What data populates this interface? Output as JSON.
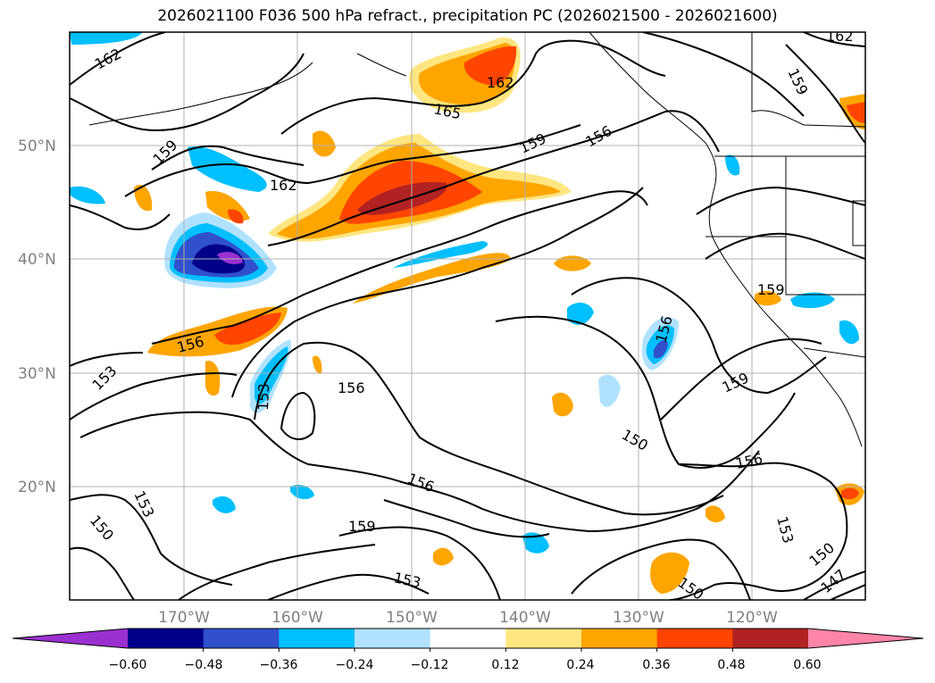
{
  "title": "2026021100 F036 500 hPa refract., precipitation PC (2026021500 - 2026021600)",
  "map": {
    "lat_labels": [
      "50°N",
      "40°N",
      "30°N",
      "20°N"
    ],
    "lon_labels": [
      "170°W",
      "160°W",
      "150°W",
      "140°W",
      "130°W",
      "120°W"
    ],
    "contour_labels": [
      {
        "text": "162"
      },
      {
        "text": "162"
      },
      {
        "text": "165"
      },
      {
        "text": "162"
      },
      {
        "text": "159"
      },
      {
        "text": "159"
      },
      {
        "text": "156"
      },
      {
        "text": "159"
      },
      {
        "text": "162"
      },
      {
        "text": "156"
      },
      {
        "text": "153"
      },
      {
        "text": "153"
      },
      {
        "text": "156"
      },
      {
        "text": "156"
      },
      {
        "text": "159"
      },
      {
        "text": "159"
      },
      {
        "text": "150"
      },
      {
        "text": "156"
      },
      {
        "text": "156"
      },
      {
        "text": "153"
      },
      {
        "text": "150"
      },
      {
        "text": "159"
      },
      {
        "text": "153"
      },
      {
        "text": "153"
      },
      {
        "text": "150"
      },
      {
        "text": "150"
      },
      {
        "text": "147"
      }
    ]
  },
  "colorbar": {
    "ticks": [
      "−0.60",
      "−0.48",
      "−0.36",
      "−0.24",
      "−0.12",
      "0.12",
      "0.24",
      "0.36",
      "0.48",
      "0.60"
    ],
    "colors": [
      "#9b30d0",
      "#00008b",
      "#3050cc",
      "#00bfff",
      "#b0e2ff",
      "#ffffff",
      "#ffe680",
      "#ffa500",
      "#ff4500",
      "#b22222",
      "#ff85a8"
    ]
  }
}
